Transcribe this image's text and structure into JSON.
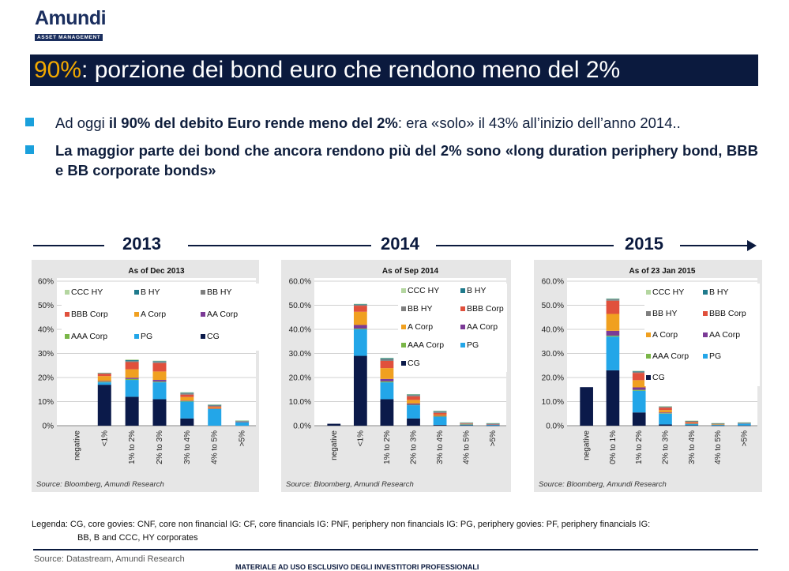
{
  "brand": {
    "name": "Amundi",
    "tagline": "ASSET MANAGEMENT"
  },
  "title": {
    "highlight": "90%",
    "rest": ": porzione dei bond euro che rendono meno del 2%"
  },
  "bullets": [
    {
      "pre": "Ad oggi ",
      "bold": "il 90% del debito Euro rende meno del 2%",
      "post": ": era «solo» il 43% all’inizio dell’anno 2014.."
    },
    {
      "pre": "",
      "bold": "La maggior parte dei bond che ancora rendono più del 2% sono «long duration periphery bond, BBB e BB corporate bonds»",
      "post": ""
    }
  ],
  "timeline": {
    "years": [
      "2013",
      "2014",
      "2015"
    ]
  },
  "colors": {
    "CCC HY": "#b4d6a0",
    "B HY": "#1f7a8c",
    "BB HY": "#7f7f7f",
    "BBB Corp": "#e0503c",
    "A Corp": "#f0a020",
    "AA Corp": "#7b3a96",
    "AAA Corp": "#7ab648",
    "PG": "#23a6e8",
    "CG": "#0b1a4a"
  },
  "chart_data": [
    {
      "type": "bar",
      "stacked": true,
      "title": "As of Dec 2013",
      "yticks": [
        "0%",
        "10%",
        "20%",
        "30%",
        "40%",
        "50%",
        "60%"
      ],
      "ylim": [
        0,
        60
      ],
      "categories": [
        "negative",
        "<1%",
        "1% to 2%",
        "2% to 3%",
        "3% to 4%",
        "4% to 5%",
        ">5%"
      ],
      "legend": [
        "CCC HY",
        "B HY",
        "BB HY",
        "BBB Corp",
        "A Corp",
        "AA Corp",
        "AAA Corp",
        "PG",
        "CG"
      ],
      "series": [
        {
          "name": "CG",
          "values": [
            0,
            17,
            12,
            11,
            3,
            0,
            0
          ]
        },
        {
          "name": "PG",
          "values": [
            0,
            1,
            7,
            7,
            7,
            7,
            1.5
          ]
        },
        {
          "name": "AAA Corp",
          "values": [
            0,
            0.3,
            0.4,
            0.3,
            0.2,
            0,
            0
          ]
        },
        {
          "name": "AA Corp",
          "values": [
            0,
            0.3,
            0.5,
            0.7,
            0.2,
            0.1,
            0
          ]
        },
        {
          "name": "A Corp",
          "values": [
            0,
            2,
            3.5,
            3.5,
            1.5,
            0.5,
            0
          ]
        },
        {
          "name": "BBB Corp",
          "values": [
            0,
            1,
            3,
            3.5,
            1,
            0.4,
            0.2
          ]
        },
        {
          "name": "BB HY",
          "values": [
            0,
            0.2,
            0.4,
            0.5,
            0.5,
            0.4,
            0.2
          ]
        },
        {
          "name": "B HY",
          "values": [
            0,
            0.1,
            0.4,
            0.3,
            0.3,
            0.3,
            0.2
          ]
        },
        {
          "name": "CCC HY",
          "values": [
            0,
            0.1,
            0.3,
            0.2,
            0.2,
            0.1,
            0.1
          ]
        }
      ],
      "source": "Source: Bloomberg, Amundi Research"
    },
    {
      "type": "bar",
      "stacked": true,
      "title": "As of Sep 2014",
      "yticks": [
        "0.0%",
        "10.0%",
        "20.0%",
        "30.0%",
        "40.0%",
        "50.0%",
        "60.0%"
      ],
      "ylim": [
        0,
        60
      ],
      "categories": [
        "negative",
        "<1%",
        "1% to 2%",
        "2% to 3%",
        "3% to 4%",
        "4% to 5%",
        ">5%"
      ],
      "legend": [
        "CCC HY",
        "B HY",
        "BB HY",
        "BBB Corp",
        "A Corp",
        "AA Corp",
        "AAA Corp",
        "PG",
        "CG"
      ],
      "series": [
        {
          "name": "CG",
          "values": [
            0.8,
            29,
            11,
            3,
            0.3,
            0.2,
            0.1
          ]
        },
        {
          "name": "PG",
          "values": [
            0,
            11,
            7,
            5.5,
            3.5,
            0.4,
            0.4
          ]
        },
        {
          "name": "AAA Corp",
          "values": [
            0,
            0.3,
            0.4,
            0.2,
            0.1,
            0,
            0
          ]
        },
        {
          "name": "AA Corp",
          "values": [
            0,
            1.5,
            1,
            0.5,
            0.2,
            0,
            0
          ]
        },
        {
          "name": "A Corp",
          "values": [
            0,
            5.5,
            4.5,
            1.5,
            0.5,
            0.1,
            0
          ]
        },
        {
          "name": "BBB Corp",
          "values": [
            0,
            2.5,
            3,
            1.5,
            0.7,
            0.2,
            0.1
          ]
        },
        {
          "name": "BB HY",
          "values": [
            0,
            0.4,
            0.7,
            0.5,
            0.5,
            0.2,
            0.2
          ]
        },
        {
          "name": "B HY",
          "values": [
            0,
            0.3,
            0.4,
            0.3,
            0.3,
            0.2,
            0.2
          ]
        },
        {
          "name": "CCC HY",
          "values": [
            0,
            0.1,
            0.2,
            0.1,
            0.1,
            0.1,
            0.1
          ]
        }
      ],
      "source": "Source: Bloomberg, Amundi Research"
    },
    {
      "type": "bar",
      "stacked": true,
      "title": "As of 23 Jan 2015",
      "yticks": [
        "0.0%",
        "10.0%",
        "20.0%",
        "30.0%",
        "40.0%",
        "50.0%",
        "60.0%"
      ],
      "ylim": [
        0,
        60
      ],
      "categories": [
        "negative",
        "0% to 1%",
        "1% to 2%",
        "2% to 3%",
        "3% to 4%",
        "4% to 5%",
        ">5%"
      ],
      "legend": [
        "CCC HY",
        "B HY",
        "BB HY",
        "BBB Corp",
        "A Corp",
        "AA Corp",
        "AAA Corp",
        "PG",
        "CG"
      ],
      "series": [
        {
          "name": "CG",
          "values": [
            16,
            23,
            5.5,
            0.5,
            0.2,
            0.1,
            0.1
          ]
        },
        {
          "name": "PG",
          "values": [
            0,
            14,
            9,
            4.5,
            0.5,
            0.4,
            0.8
          ]
        },
        {
          "name": "AAA Corp",
          "values": [
            0,
            0.4,
            0.4,
            0.2,
            0.1,
            0,
            0
          ]
        },
        {
          "name": "AA Corp",
          "values": [
            0,
            2,
            1,
            0.3,
            0.1,
            0,
            0
          ]
        },
        {
          "name": "A Corp",
          "values": [
            0,
            7,
            3,
            1,
            0.3,
            0.1,
            0
          ]
        },
        {
          "name": "BBB Corp",
          "values": [
            0,
            5.5,
            3,
            1,
            0.4,
            0.2,
            0.2
          ]
        },
        {
          "name": "BB HY",
          "values": [
            0,
            0.5,
            0.5,
            0.3,
            0.2,
            0.1,
            0.1
          ]
        },
        {
          "name": "B HY",
          "values": [
            0,
            0.3,
            0.3,
            0.2,
            0.2,
            0.1,
            0.1
          ]
        },
        {
          "name": "CCC HY",
          "values": [
            0,
            0.1,
            0.1,
            0.1,
            0.1,
            0.1,
            0.1
          ]
        }
      ],
      "source": "Source: Bloomberg, Amundi Research"
    }
  ],
  "legenda": {
    "line1": "Legenda: CG, core govies: CNF, core non financial IG: CF, core financials IG: PNF, periphery non financials IG: PG, periphery govies: PF, periphery financials IG:",
    "line2": "BB, B and CCC, HY corporates"
  },
  "footer": {
    "source": "Source: Datastream, Amundi Research",
    "disclaimer": "MATERIALE AD USO ESCLUSIVO DEGLI INVESTITORI PROFESSIONALI"
  }
}
